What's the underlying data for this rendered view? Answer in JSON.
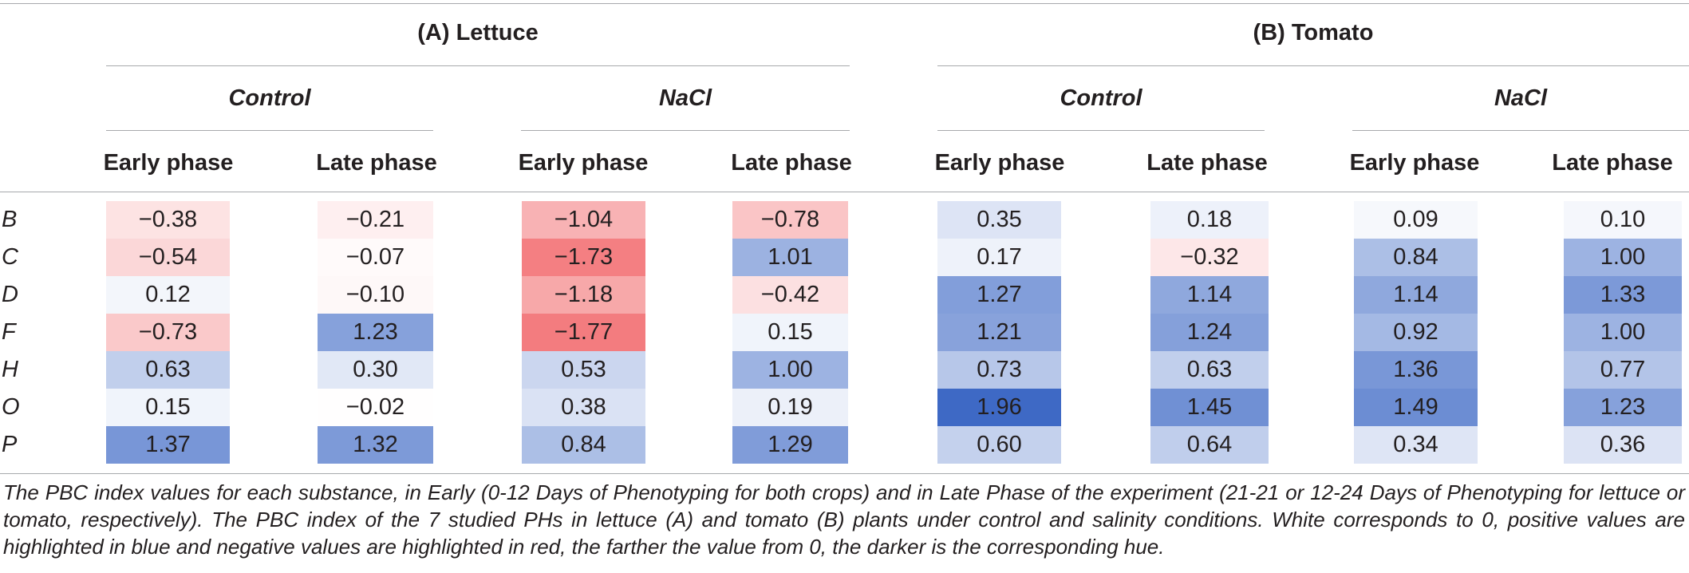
{
  "crops": [
    {
      "label": "(A) Lettuce"
    },
    {
      "label": "(B) Tomato"
    }
  ],
  "conditions": [
    {
      "label": "Control"
    },
    {
      "label": "NaCl"
    },
    {
      "label": "Control"
    },
    {
      "label": "NaCl"
    }
  ],
  "phases": [
    {
      "label": "Early phase"
    },
    {
      "label": "Late phase"
    },
    {
      "label": "Early phase"
    },
    {
      "label": "Late phase"
    },
    {
      "label": "Early phase"
    },
    {
      "label": "Late phase"
    },
    {
      "label": "Early phase"
    },
    {
      "label": "Late phase"
    }
  ],
  "colors": {
    "positive_max": "#3a66c4",
    "negative_max": "#f26b6e",
    "zero": "#ffffff"
  },
  "table": {
    "rows": [
      {
        "label": "B",
        "values": [
          "−0.38",
          "−0.21",
          "−1.04",
          "−0.78",
          "0.35",
          "0.18",
          "0.09",
          "0.10"
        ]
      },
      {
        "label": "C",
        "values": [
          "−0.54",
          "−0.07",
          "−1.73",
          "1.01",
          "0.17",
          "−0.32",
          "0.84",
          "1.00"
        ]
      },
      {
        "label": "D",
        "values": [
          "0.12",
          "−0.10",
          "−1.18",
          "−0.42",
          "1.27",
          "1.14",
          "1.14",
          "1.33"
        ]
      },
      {
        "label": "F",
        "values": [
          "−0.73",
          "1.23",
          "−1.77",
          "0.15",
          "1.21",
          "1.24",
          "0.92",
          "1.00"
        ]
      },
      {
        "label": "H",
        "values": [
          "0.63",
          "0.30",
          "0.53",
          "1.00",
          "0.73",
          "0.63",
          "1.36",
          "0.77"
        ]
      },
      {
        "label": "O",
        "values": [
          "0.15",
          "−0.02",
          "0.38",
          "0.19",
          "1.96",
          "1.45",
          "1.49",
          "1.23"
        ]
      },
      {
        "label": "P",
        "values": [
          "1.37",
          "1.32",
          "0.84",
          "1.29",
          "0.60",
          "0.64",
          "0.34",
          "0.36"
        ]
      }
    ]
  },
  "caption": "The PBC index values for each substance, in Early (0-12 Days of Phenotyping for both crops) and in Late Phase of the experiment (21-21 or 12-24 Days of Phenotyping for lettuce or tomato, respectively). The PBC index of the 7 studied PHs in lettuce (A) and tomato (B) plants under control and salinity conditions. White corresponds to 0, positive values are highlighted in blue and negative values are highlighted in red, the farther the value from 0, the darker is the corresponding hue."
}
